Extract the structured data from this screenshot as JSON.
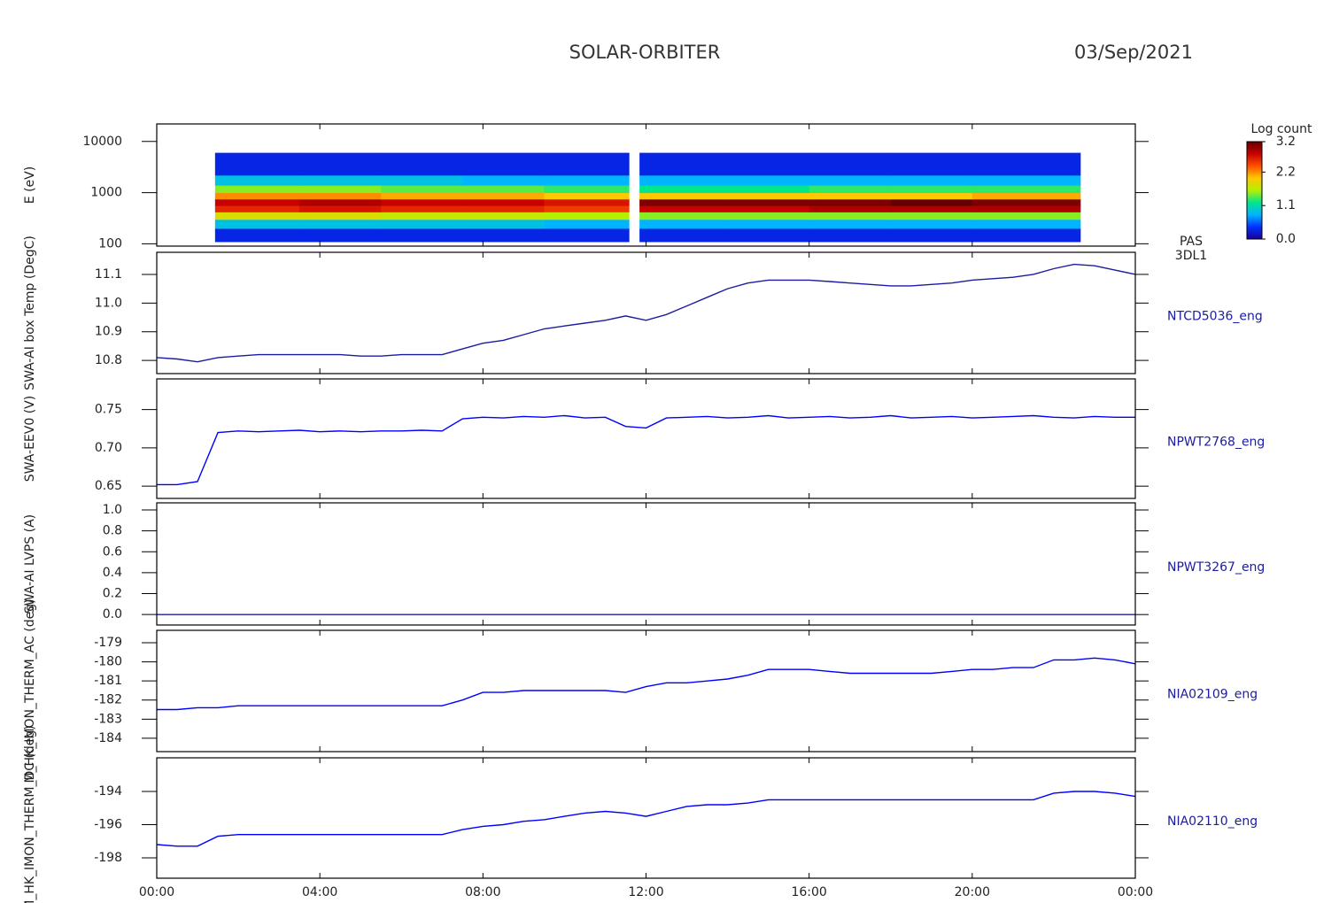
{
  "header": {
    "title": "SOLAR-ORBITER",
    "date": "03/Sep/2021"
  },
  "chart_data": [
    {
      "type": "heatmap",
      "ylabel": "E (eV)",
      "name": "PAS",
      "subname": "3DL1",
      "log": true,
      "xlim": [
        0,
        24
      ],
      "ylim": [
        90,
        22000
      ],
      "yticks": [
        100,
        1000,
        10000
      ],
      "x_edges": [
        1.43,
        3.5,
        5.5,
        7.5,
        9.5,
        11.58,
        11.84,
        14,
        16,
        18,
        20,
        22.65
      ],
      "y_edges": [
        110,
        200,
        300,
        420,
        560,
        750,
        1000,
        1400,
        2200,
        6000
      ],
      "z": [
        [
          0.3,
          0.3,
          0.3,
          0.3,
          0.3,
          null,
          0.3,
          0.3,
          0.3,
          0.3,
          0.3
        ],
        [
          0.9,
          0.9,
          0.9,
          0.9,
          0.8,
          null,
          0.8,
          0.8,
          0.8,
          0.8,
          0.8
        ],
        [
          1.8,
          1.8,
          1.7,
          1.7,
          1.6,
          null,
          1.5,
          1.5,
          1.5,
          1.5,
          1.5
        ],
        [
          2.6,
          2.7,
          2.6,
          2.6,
          2.5,
          null,
          2.8,
          2.8,
          2.9,
          2.9,
          2.9
        ],
        [
          2.8,
          2.9,
          2.8,
          2.8,
          2.7,
          null,
          3.1,
          3.1,
          3.1,
          3.2,
          3.1
        ],
        [
          2.2,
          2.2,
          2.1,
          2.1,
          2.0,
          null,
          2.0,
          2.0,
          2.0,
          2.0,
          2.1
        ],
        [
          1.5,
          1.5,
          1.4,
          1.4,
          1.3,
          null,
          1.2,
          1.2,
          1.3,
          1.3,
          1.3
        ],
        [
          0.9,
          0.9,
          0.9,
          0.8,
          0.8,
          null,
          0.8,
          0.8,
          0.8,
          0.8,
          0.8
        ],
        [
          0.3,
          0.3,
          0.3,
          0.3,
          0.3,
          null,
          0.3,
          0.3,
          0.3,
          0.3,
          0.3
        ]
      ],
      "colorbar_title": "Log count",
      "zlim": [
        0,
        3.2
      ],
      "zticks": [
        3.2,
        2.2,
        1.1,
        {
          "value": 0,
          "label": "0.0"
        }
      ],
      "colorscale": [
        "#1a0096",
        "#0032ff",
        "#00b4ff",
        "#00e68c",
        "#b4f000",
        "#ffc800",
        "#ff5000",
        "#c80000",
        "#640000"
      ]
    },
    {
      "type": "line",
      "ylabel": "SWA-AI box Temp (DegC)",
      "name": "NTCD5036_eng",
      "xlim": [
        0,
        24
      ],
      "ylim": [
        10.754,
        11.177
      ],
      "yticks": [
        10.8,
        10.9,
        {
          "value": 11.0,
          "label": "11.0"
        },
        11.1
      ],
      "x": [
        0,
        0.5,
        1,
        1.5,
        2,
        2.5,
        3,
        3.5,
        4,
        4.5,
        5,
        5.5,
        6,
        6.5,
        7,
        7.5,
        8,
        8.5,
        9,
        9.5,
        10,
        10.5,
        11,
        11.5,
        12,
        12.5,
        13,
        13.5,
        14,
        14.5,
        15,
        15.5,
        16,
        16.5,
        17,
        17.5,
        18,
        18.5,
        19,
        19.5,
        20,
        20.5,
        21,
        21.5,
        22,
        22.5,
        23,
        23.5,
        24
      ],
      "series": [
        {
          "color": "#1c1ca0",
          "values": [
            10.81,
            10.805,
            10.795,
            10.81,
            10.815,
            10.82,
            10.82,
            10.82,
            10.82,
            10.82,
            10.815,
            10.815,
            10.82,
            10.82,
            10.82,
            10.84,
            10.86,
            10.87,
            10.89,
            10.91,
            10.92,
            10.93,
            10.94,
            10.955,
            10.94,
            10.96,
            10.99,
            11.02,
            11.05,
            11.07,
            11.08,
            11.08,
            11.08,
            11.075,
            11.07,
            11.065,
            11.06,
            11.06,
            11.065,
            11.07,
            11.08,
            11.085,
            11.09,
            11.1,
            11.12,
            11.135,
            11.13,
            11.115,
            11.1
          ]
        }
      ]
    },
    {
      "type": "line",
      "ylabel": "SWA-EEV0 (V)",
      "name": "NPWT2768_eng",
      "xlim": [
        0,
        24
      ],
      "ylim": [
        0.634,
        0.79
      ],
      "yticks": [
        0.65,
        {
          "value": 0.7,
          "label": "0.70"
        },
        0.75
      ],
      "x": [
        0,
        0.5,
        1,
        1.5,
        2,
        2.5,
        3,
        3.5,
        4,
        4.5,
        5,
        5.5,
        6,
        6.5,
        7,
        7.5,
        8,
        8.5,
        9,
        9.5,
        10,
        10.5,
        11,
        11.5,
        12,
        12.5,
        13,
        13.5,
        14,
        14.5,
        15,
        15.5,
        16,
        16.5,
        17,
        17.5,
        18,
        18.5,
        19,
        19.5,
        20,
        20.5,
        21,
        21.5,
        22,
        22.5,
        23,
        23.5,
        24
      ],
      "series": [
        {
          "color": "#0000ff",
          "values": [
            0.652,
            0.652,
            0.656,
            0.72,
            0.722,
            0.721,
            0.722,
            0.723,
            0.721,
            0.722,
            0.721,
            0.722,
            0.722,
            0.723,
            0.722,
            0.738,
            0.74,
            0.739,
            0.741,
            0.74,
            0.742,
            0.739,
            0.74,
            0.728,
            0.726,
            0.739,
            0.74,
            0.741,
            0.739,
            0.74,
            0.742,
            0.739,
            0.74,
            0.741,
            0.739,
            0.74,
            0.742,
            0.739,
            0.74,
            0.741,
            0.739,
            0.74,
            0.741,
            0.742,
            0.74,
            0.739,
            0.741,
            0.74,
            0.74
          ]
        }
      ]
    },
    {
      "type": "line",
      "ylabel": "SWA-AI LVPS (A)",
      "name": "NPWT3267_eng",
      "xlim": [
        0,
        24
      ],
      "ylim": [
        -0.1,
        1.068
      ],
      "yticks": [
        {
          "value": 0,
          "label": "0.0"
        },
        0.2,
        0.4,
        0.6,
        0.8,
        {
          "value": 1,
          "label": "1.0"
        }
      ],
      "x": [
        0,
        0.5,
        1,
        1.5,
        2,
        2.5,
        3,
        3.5,
        4,
        4.5,
        5,
        5.5,
        6,
        6.5,
        7,
        7.5,
        8,
        8.5,
        9,
        9.5,
        10,
        10.5,
        11,
        11.5,
        12,
        12.5,
        13,
        13.5,
        14,
        14.5,
        15,
        15.5,
        16,
        16.5,
        17,
        17.5,
        18,
        18.5,
        19,
        19.5,
        20,
        20.5,
        21,
        21.5,
        22,
        22.5,
        23,
        23.5,
        24
      ],
      "series": [
        {
          "color": "#1c1ca0",
          "values": [
            0,
            0,
            0,
            0,
            0,
            0,
            0,
            0,
            0,
            0,
            0,
            0,
            0,
            0,
            0,
            0,
            0,
            0,
            0,
            0,
            0,
            0,
            0,
            0,
            0,
            0,
            0,
            0,
            0,
            0,
            0,
            0,
            0,
            0,
            0,
            0,
            0,
            0,
            0,
            0,
            0,
            0,
            0,
            0,
            0,
            0,
            0,
            0,
            0
          ]
        }
      ]
    },
    {
      "type": "line",
      "ylabel": "M_HK_IMON_THERM_AC (deg)",
      "name": "NIA02109_eng",
      "xlim": [
        0,
        24
      ],
      "ylim": [
        -184.7,
        -178.35
      ],
      "yticks": [
        -184,
        -183,
        -182,
        -181,
        -180,
        -179
      ],
      "x": [
        0,
        0.5,
        1,
        1.5,
        2,
        2.5,
        3,
        3.5,
        4,
        4.5,
        5,
        5.5,
        6,
        6.5,
        7,
        7.5,
        8,
        8.5,
        9,
        9.5,
        10,
        10.5,
        11,
        11.5,
        12,
        12.5,
        13,
        13.5,
        14,
        14.5,
        15,
        15.5,
        16,
        16.5,
        17,
        17.5,
        18,
        18.5,
        19,
        19.5,
        20,
        20.5,
        21,
        21.5,
        22,
        22.5,
        23,
        23.5,
        24
      ],
      "series": [
        {
          "color": "#0000ff",
          "values": [
            -182.5,
            -182.5,
            -182.4,
            -182.4,
            -182.3,
            -182.3,
            -182.3,
            -182.3,
            -182.3,
            -182.3,
            -182.3,
            -182.3,
            -182.3,
            -182.3,
            -182.3,
            -182.0,
            -181.6,
            -181.6,
            -181.5,
            -181.5,
            -181.5,
            -181.5,
            -181.5,
            -181.6,
            -181.3,
            -181.1,
            -181.1,
            -181.0,
            -180.9,
            -180.7,
            -180.4,
            -180.4,
            -180.4,
            -180.5,
            -180.6,
            -180.6,
            -180.6,
            -180.6,
            -180.6,
            -180.5,
            -180.4,
            -180.4,
            -180.3,
            -180.3,
            -179.9,
            -179.9,
            -179.8,
            -179.9,
            -180.1
          ]
        }
      ]
    },
    {
      "type": "line",
      "ylabel": "M_HK_IMON_THERM_DC (deg)",
      "name": "NIA02110_eng",
      "xlim": [
        0,
        24
      ],
      "ylim": [
        -199.23,
        -191.97
      ],
      "yticks": [
        -198,
        -196,
        -194
      ],
      "x": [
        0,
        0.5,
        1,
        1.5,
        2,
        2.5,
        3,
        3.5,
        4,
        4.5,
        5,
        5.5,
        6,
        6.5,
        7,
        7.5,
        8,
        8.5,
        9,
        9.5,
        10,
        10.5,
        11,
        11.5,
        12,
        12.5,
        13,
        13.5,
        14,
        14.5,
        15,
        15.5,
        16,
        16.5,
        17,
        17.5,
        18,
        18.5,
        19,
        19.5,
        20,
        20.5,
        21,
        21.5,
        22,
        22.5,
        23,
        23.5,
        24
      ],
      "xticks": [
        {
          "value": 0,
          "label": "00:00"
        },
        {
          "value": 4,
          "label": "04:00"
        },
        {
          "value": 8,
          "label": "08:00"
        },
        {
          "value": 12,
          "label": "12:00"
        },
        {
          "value": 16,
          "label": "16:00"
        },
        {
          "value": 20,
          "label": "20:00"
        },
        {
          "value": 24,
          "label": "00:00"
        }
      ],
      "series": [
        {
          "color": "#0000ff",
          "values": [
            -197.2,
            -197.3,
            -197.3,
            -196.7,
            -196.6,
            -196.6,
            -196.6,
            -196.6,
            -196.6,
            -196.6,
            -196.6,
            -196.6,
            -196.6,
            -196.6,
            -196.6,
            -196.3,
            -196.1,
            -196.0,
            -195.8,
            -195.7,
            -195.5,
            -195.3,
            -195.2,
            -195.3,
            -195.5,
            -195.2,
            -194.9,
            -194.8,
            -194.8,
            -194.7,
            -194.5,
            -194.5,
            -194.5,
            -194.5,
            -194.5,
            -194.5,
            -194.5,
            -194.5,
            -194.5,
            -194.5,
            -194.5,
            -194.5,
            -194.5,
            -194.5,
            -194.1,
            -194.0,
            -194.0,
            -194.1,
            -194.3
          ]
        }
      ]
    }
  ]
}
